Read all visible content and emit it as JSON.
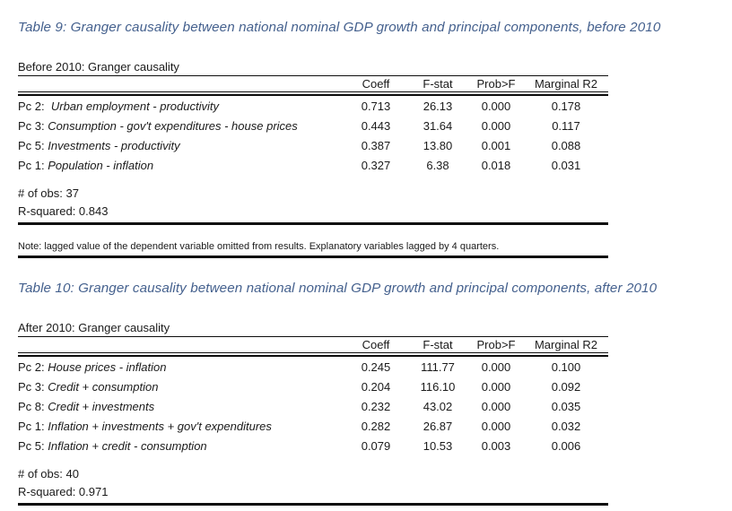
{
  "page": {
    "caption_color": "#45618e",
    "text_color": "#1a1a1a"
  },
  "note": {
    "text": "Note: lagged value of the dependent variable omitted from results. Explanatory variables lagged by 4 quarters."
  },
  "tables": [
    {
      "caption": "Table 9: Granger causality between national nominal GDP growth and principal components, before 2010",
      "subtitle": "Before 2010: Granger causality",
      "columns": {
        "coeff": "Coeff",
        "fstat": "F-stat",
        "prob": "Prob>F",
        "marginal": "Marginal R2"
      },
      "rows": [
        {
          "pc": "Pc 2:  ",
          "desc": "Urban employment - productivity",
          "coeff": "0.713",
          "fstat": "26.13",
          "prob": "0.000",
          "marginal": "0.178"
        },
        {
          "pc": "Pc 3: ",
          "desc": "Consumption - gov't expenditures - house prices",
          "coeff": "0.443",
          "fstat": "31.64",
          "prob": "0.000",
          "marginal": "0.117"
        },
        {
          "pc": "Pc 5: ",
          "desc": "Investments - productivity",
          "coeff": "0.387",
          "fstat": "13.80",
          "prob": "0.001",
          "marginal": "0.088"
        },
        {
          "pc": "Pc 1: ",
          "desc": "Population - inflation",
          "coeff": "0.327",
          "fstat": "6.38",
          "prob": "0.018",
          "marginal": "0.031"
        }
      ],
      "obs": "# of obs: 37",
      "r_squared": "R-squared: 0.843"
    },
    {
      "caption": "Table 10: Granger causality between national nominal GDP growth and principal components, after 2010",
      "subtitle": "After 2010: Granger causality",
      "columns": {
        "coeff": "Coeff",
        "fstat": "F-stat",
        "prob": "Prob>F",
        "marginal": "Marginal R2"
      },
      "rows": [
        {
          "pc": "Pc 2: ",
          "desc": "House prices - inflation",
          "coeff": "0.245",
          "fstat": "111.77",
          "prob": "0.000",
          "marginal": "0.100"
        },
        {
          "pc": "Pc 3: ",
          "desc": "Credit + consumption",
          "coeff": "0.204",
          "fstat": "116.10",
          "prob": "0.000",
          "marginal": "0.092"
        },
        {
          "pc": "Pc 8: ",
          "desc": "Credit + investments",
          "coeff": "0.232",
          "fstat": "43.02",
          "prob": "0.000",
          "marginal": "0.035"
        },
        {
          "pc": "Pc 1: ",
          "desc": "Inflation + investments + gov't expenditures",
          "coeff": "0.282",
          "fstat": "26.87",
          "prob": "0.000",
          "marginal": "0.032"
        },
        {
          "pc": "Pc 5: ",
          "desc": "Inflation + credit - consumption",
          "coeff": "0.079",
          "fstat": "10.53",
          "prob": "0.003",
          "marginal": "0.006"
        }
      ],
      "obs": "# of obs: 40",
      "r_squared": "R-squared: 0.971"
    }
  ]
}
